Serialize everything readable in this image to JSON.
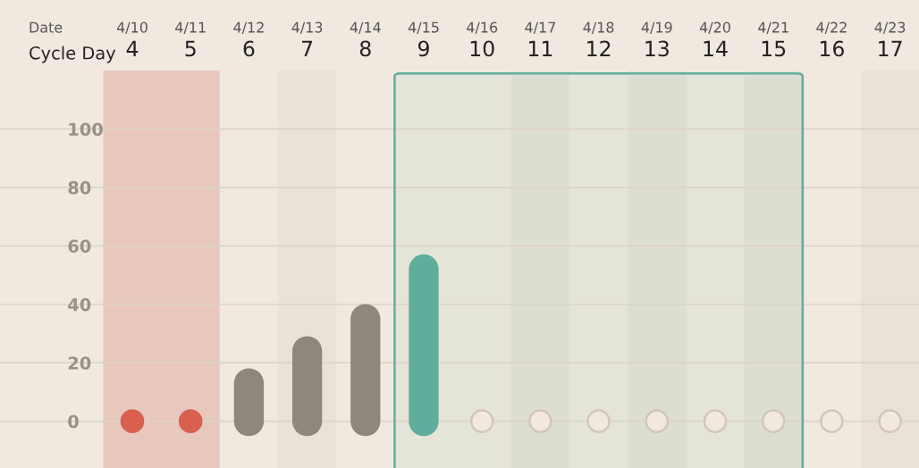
{
  "chart_data": {
    "type": "bar",
    "categories": [
      "4",
      "5",
      "6",
      "7",
      "8",
      "9",
      "10",
      "11",
      "12",
      "13",
      "14",
      "15",
      "16",
      "17"
    ],
    "xlabel": "Cycle Day",
    "annotations": [
      "Date",
      "4/10",
      "4/11",
      "4/12",
      "4/13",
      "4/14",
      "4/15",
      "4/16",
      "4/17",
      "4/18",
      "4/19",
      "4/20",
      "4/21",
      "4/22",
      "4/23"
    ],
    "series": [
      {
        "colors": [
          "#8e877d",
          "#8e877d",
          "#8e877d",
          "#8e877d",
          "#8e877d",
          "#5fae9c",
          "#8e877d",
          "#8e877d",
          "#8e877d",
          "#8e877d",
          "#8e877d",
          "#8e877d",
          "#8e877d",
          "#8e877d"
        ],
        "values": [
          null,
          null,
          13,
          24,
          35,
          52,
          null,
          null,
          null,
          null,
          null,
          null,
          null,
          null
        ]
      },
      {
        "type": "scatter",
        "color": "#d9604f",
        "values": [
          0,
          0,
          null,
          null,
          null,
          null,
          null,
          null,
          null,
          null,
          null,
          null,
          null,
          null
        ]
      },
      {
        "type": "scatter",
        "color": "#d3c6b8",
        "values": [
          null,
          null,
          null,
          null,
          null,
          null,
          0,
          0,
          0,
          0,
          0,
          0,
          0,
          0
        ]
      }
    ],
    "bands": [
      {
        "axis": "x",
        "from": "4",
        "to": "5",
        "color": "#e8c8bd"
      },
      {
        "axis": "x",
        "from": "7",
        "to": "7",
        "color": "#e9e2d7"
      },
      {
        "axis": "x",
        "from": "11",
        "to": "11",
        "color": "#e9e2d7"
      },
      {
        "axis": "x",
        "from": "13",
        "to": "13",
        "color": "#e9e2d7"
      },
      {
        "axis": "x",
        "from": "15",
        "to": "15",
        "color": "#e9e2d7"
      },
      {
        "axis": "x",
        "from": "17",
        "to": "17",
        "color": "#e9e2d7"
      },
      {
        "axis": "x",
        "from": "9",
        "to": "15",
        "color": "#5fae9c"
      }
    ],
    "ylim": [
      -16,
      120
    ],
    "yticks": [
      0,
      20,
      40,
      60,
      80,
      100
    ],
    "grid": "y"
  }
}
